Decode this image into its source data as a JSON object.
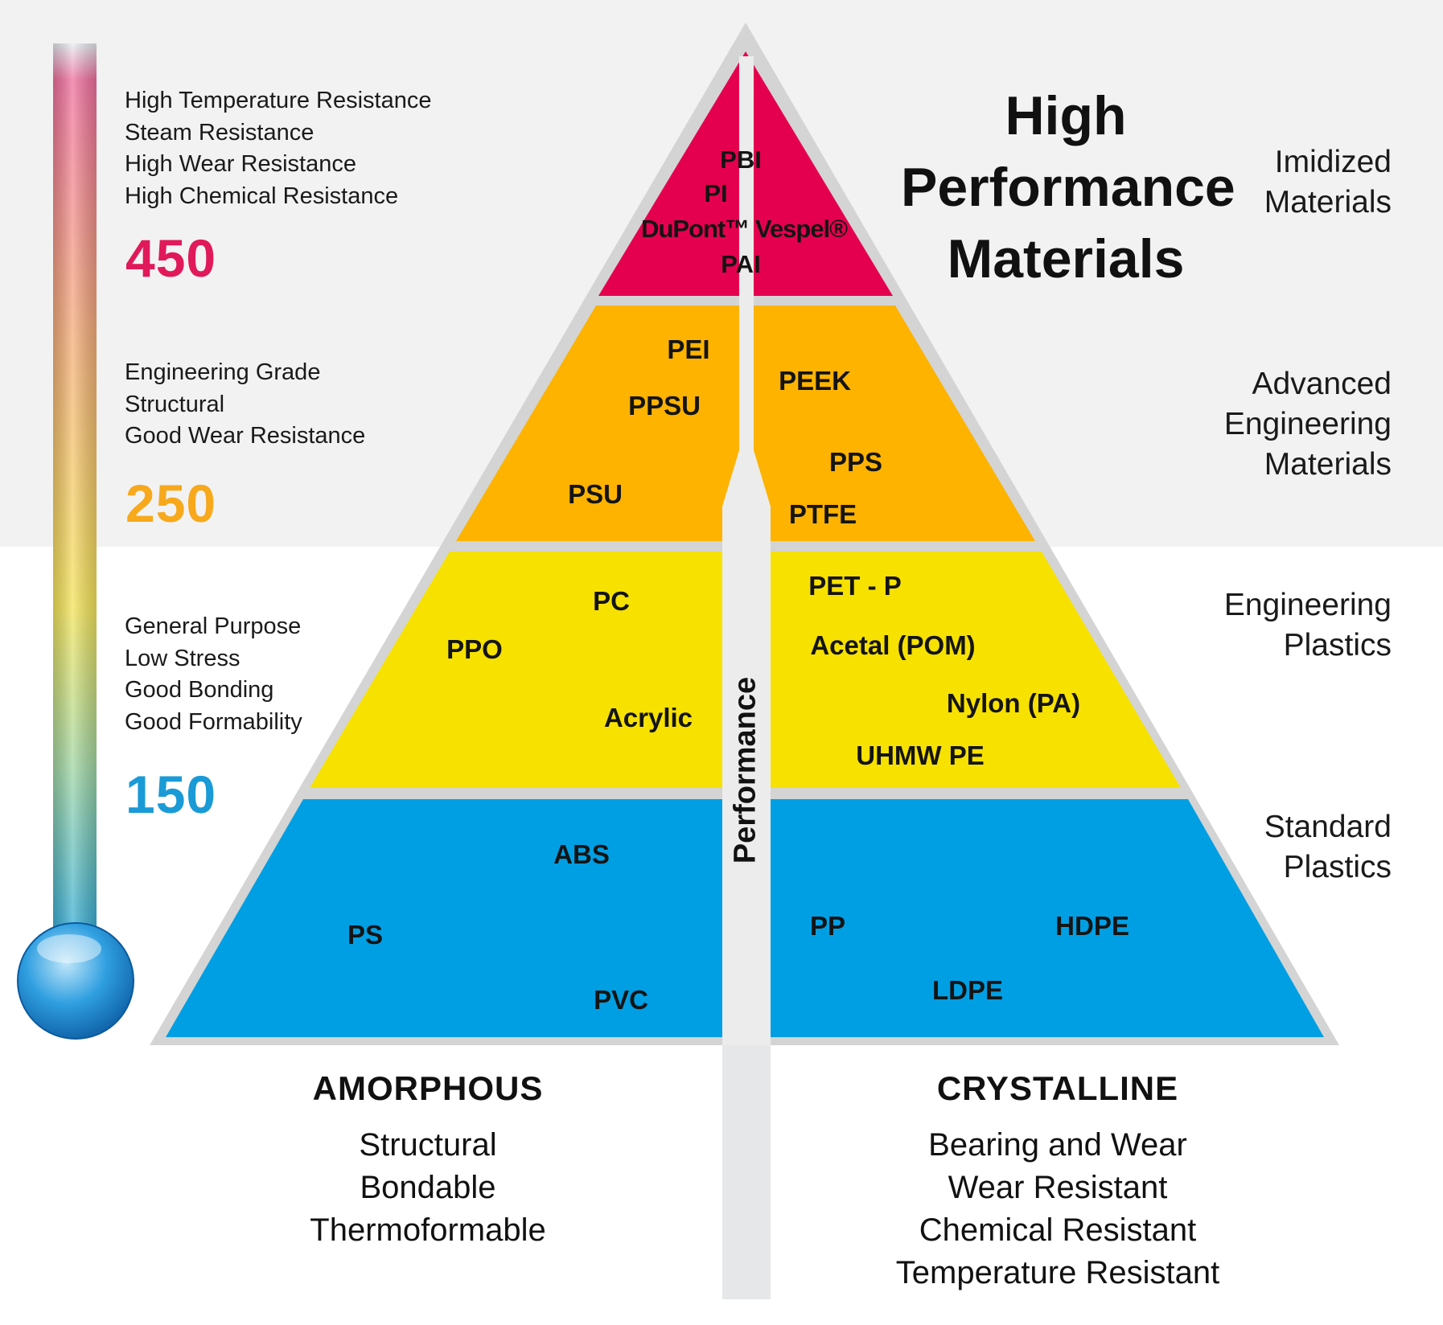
{
  "colors": {
    "imidized": "#e5004f",
    "advanced": "#fdb300",
    "engineering": "#f7e100",
    "standard": "#009fe3",
    "temp_450": "#e0195a",
    "temp_250": "#f7a81b",
    "temp_150": "#1a9ad6"
  },
  "thermometer": {
    "levels": [
      {
        "value": "450",
        "features": [
          "High Temperature Resistance",
          "Steam Resistance",
          "High Wear Resistance",
          "High Chemical Resistance"
        ]
      },
      {
        "value": "250",
        "features": [
          "Engineering Grade",
          "Structural",
          "Good Wear Resistance"
        ]
      },
      {
        "value": "150",
        "features": [
          "General Purpose",
          "Low Stress",
          "Good Bonding",
          "Good Formability"
        ]
      }
    ]
  },
  "title": "High\nPerformance\nMaterials",
  "axis_label": "Performance",
  "tiers": [
    {
      "name": "Imidized\nMaterials",
      "materials": [
        "PBI",
        "PI",
        "DuPont™ Vespel®",
        "PAI"
      ]
    },
    {
      "name": "Advanced\nEngineering\nMaterials",
      "materials": [
        "PEI",
        "PPSU",
        "PSU",
        "PEEK",
        "PPS",
        "PTFE"
      ]
    },
    {
      "name": "Engineering\nPlastics",
      "materials": [
        "PC",
        "PPO",
        "Acrylic",
        "PET - P",
        "Acetal (POM)",
        "Nylon (PA)",
        "UHMW PE"
      ]
    },
    {
      "name": "Standard\nPlastics",
      "materials": [
        "ABS",
        "PS",
        "PVC",
        "PP",
        "HDPE",
        "LDPE"
      ]
    }
  ],
  "columns": [
    {
      "heading": "AMORPHOUS",
      "properties": "Structural\nBondable\nThermoformable"
    },
    {
      "heading": "CRYSTALLINE",
      "properties": "Bearing and Wear\nWear Resistant\nChemical Resistant\nTemperature Resistant"
    }
  ]
}
